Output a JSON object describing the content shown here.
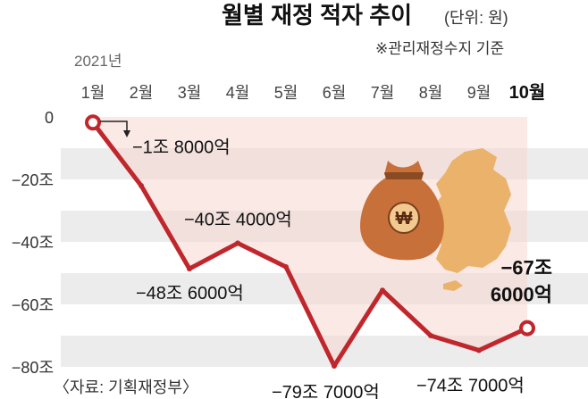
{
  "title": "월별 재정 적자 추이",
  "unit": "(단위: 원)",
  "subtitle": "※관리재정수지 기준",
  "year": "2021년",
  "source": "〈자료: 기획재정부〉",
  "colors": {
    "line": "#c0272d",
    "band": "#ececec",
    "area": "#f6d7cf",
    "money_bag": "#c8703a",
    "korea_map": "#eab26a"
  },
  "chart_data": {
    "type": "line",
    "title": "월별 재정 적자 추이",
    "ylabel": "",
    "xlabel": "",
    "categories": [
      "1월",
      "2월",
      "3월",
      "4월",
      "5월",
      "6월",
      "7월",
      "8월",
      "9월",
      "10월"
    ],
    "y_ticks": [
      "0",
      "−20조",
      "−40조",
      "−60조",
      "−80조"
    ],
    "ylim": [
      -80,
      0
    ],
    "values": [
      -1.8,
      -22,
      -48.6,
      -40.4,
      -48,
      -79.7,
      -55.5,
      -70,
      -74.7,
      -67.6
    ],
    "grid": "alternating horizontal bands",
    "annotations": [
      {
        "index": 0,
        "label": "−1조 8000억"
      },
      {
        "index": 2,
        "label": "−48조 6000억"
      },
      {
        "index": 3,
        "label": "−40조 4000억"
      },
      {
        "index": 5,
        "label": "−79조 7000억"
      },
      {
        "index": 8,
        "label": "−74조 7000억"
      },
      {
        "index": 9,
        "label": "−67조 6000억"
      }
    ],
    "highlighted_category": "10월"
  },
  "icons": [
    "money-bag-icon",
    "won-sign-icon",
    "korea-map-icon"
  ]
}
